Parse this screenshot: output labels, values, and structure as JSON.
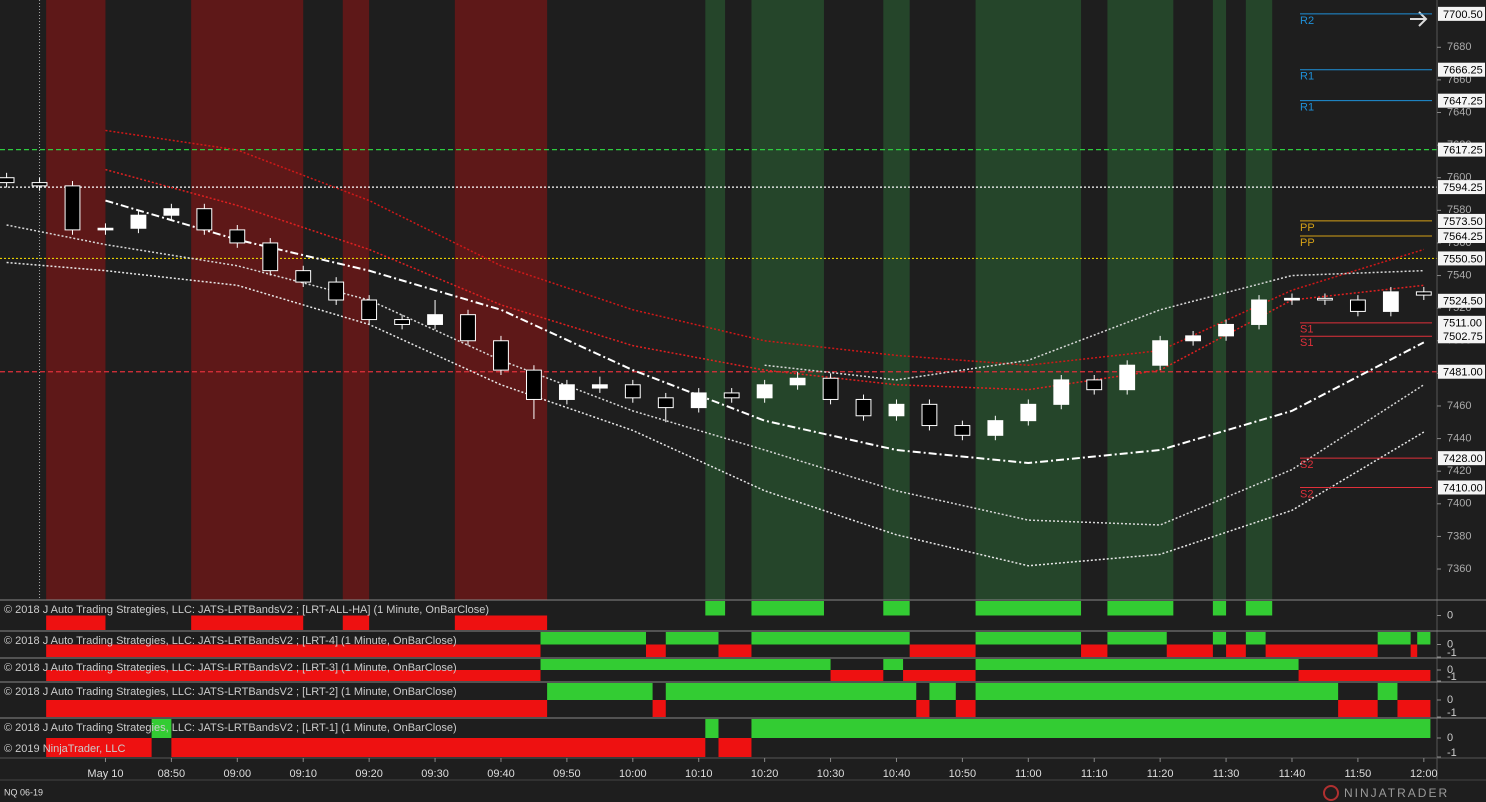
{
  "chart_data": {
    "type": "candlestick",
    "xlim": [
      "08:24",
      "12:02"
    ],
    "ylim": [
      7341,
      7709
    ],
    "yticks": [
      7360,
      7380,
      7400,
      7420,
      7440,
      7460,
      7480,
      7500,
      7520,
      7540,
      7560,
      7580,
      7600,
      7620,
      7640,
      7660,
      7680
    ],
    "xticks": [
      {
        "value": "08:40",
        "label": "May 10"
      },
      "08:50",
      "09:00",
      "09:10",
      "09:20",
      "09:30",
      "09:40",
      "09:50",
      "10:00",
      "10:10",
      "10:20",
      "10:30",
      "10:40",
      "10:50",
      "11:00",
      "11:10",
      "11:20",
      "11:30",
      "11:40",
      "11:50",
      "12:00"
    ],
    "session_start": "08:30",
    "up_color": "#ffffff",
    "down_color": "#000000",
    "wick_color": "#ffffff",
    "x": [
      "08:25",
      "08:30",
      "08:35",
      "08:40",
      "08:45",
      "08:50",
      "08:55",
      "09:00",
      "09:05",
      "09:10",
      "09:15",
      "09:20",
      "09:25",
      "09:30",
      "09:35",
      "09:40",
      "09:45",
      "09:50",
      "09:55",
      "10:00",
      "10:05",
      "10:10",
      "10:15",
      "10:20",
      "10:25",
      "10:30",
      "10:35",
      "10:40",
      "10:45",
      "10:50",
      "10:55",
      "11:00",
      "11:05",
      "11:10",
      "11:15",
      "11:20",
      "11:25",
      "11:30",
      "11:35",
      "11:40",
      "11:45",
      "11:50",
      "11:55",
      "12:00"
    ],
    "open": [
      7600,
      7597,
      7595,
      7568,
      7569,
      7577,
      7581,
      7568,
      7560,
      7543,
      7536,
      7525,
      7513,
      7510,
      7516,
      7500,
      7482,
      7464,
      7471,
      7473,
      7465,
      7459,
      7468,
      7465,
      7473,
      7477,
      7464,
      7454,
      7461,
      7448,
      7442,
      7451,
      7461,
      7476,
      7470,
      7485,
      7500,
      7503,
      7510,
      7525,
      7526,
      7525,
      7518,
      7530
    ],
    "high": [
      7603,
      7600,
      7598,
      7572,
      7580,
      7584,
      7584,
      7571,
      7563,
      7546,
      7539,
      7528,
      7516,
      7525,
      7519,
      7503,
      7485,
      7476,
      7478,
      7476,
      7468,
      7471,
      7471,
      7476,
      7481,
      7480,
      7467,
      7464,
      7464,
      7451,
      7454,
      7464,
      7479,
      7479,
      7488,
      7503,
      7506,
      7513,
      7528,
      7529,
      7529,
      7528,
      7533,
      7533
    ],
    "low": [
      7594,
      7592,
      7565,
      7565,
      7566,
      7574,
      7565,
      7557,
      7540,
      7533,
      7522,
      7510,
      7507,
      7507,
      7497,
      7479,
      7452,
      7461,
      7468,
      7462,
      7450,
      7456,
      7462,
      7462,
      7470,
      7461,
      7451,
      7451,
      7445,
      7439,
      7439,
      7448,
      7458,
      7467,
      7467,
      7482,
      7497,
      7500,
      7507,
      7522,
      7522,
      7515,
      7515,
      7525
    ],
    "close": [
      7597,
      7595,
      7568,
      7569,
      7577,
      7581,
      7568,
      7560,
      7543,
      7536,
      7525,
      7513,
      7510,
      7516,
      7500,
      7482,
      7464,
      7473,
      7473,
      7465,
      7459,
      7468,
      7465,
      7473,
      7477,
      7464,
      7454,
      7461,
      7448,
      7442,
      7451,
      7461,
      7476,
      7470,
      7485,
      7500,
      7503,
      7510,
      7525,
      7526,
      7525,
      7518,
      7530,
      7528
    ],
    "bands": {
      "x": [
        "08:25",
        "08:40",
        "09:00",
        "09:20",
        "09:40",
        "10:00",
        "10:20",
        "10:40",
        "11:00",
        "11:20",
        "11:40",
        "12:00"
      ],
      "series": [
        {
          "color": "#d01818",
          "style": "dotted",
          "values": [
            null,
            7629,
            7617,
            7586,
            7546,
            7519,
            7500,
            7491,
            7485,
            7494,
            7531,
            7556
          ]
        },
        {
          "color": "#e02020",
          "style": "dotted",
          "values": [
            null,
            7605,
            7583,
            7556,
            7522,
            7497,
            7482,
            7473,
            7470,
            7482,
            7525,
            7534
          ]
        },
        {
          "color": "#ffffff",
          "style": "dashdot",
          "values": [
            null,
            7586,
            7562,
            7543,
            7519,
            7482,
            7451,
            7433,
            7425,
            7433,
            7457,
            7499
          ]
        },
        {
          "color": "#d8d8d8",
          "style": "dotted",
          "values": [
            null,
            null,
            null,
            null,
            null,
            null,
            7485,
            7476,
            7488,
            7519,
            7540,
            7543
          ]
        },
        {
          "color": "#d8d8d8",
          "style": "dotted",
          "values": [
            7571,
            7559,
            7546,
            7525,
            7488,
            7457,
            7433,
            7408,
            7390,
            7387,
            7421,
            7473
          ]
        },
        {
          "color": "#e8e8e8",
          "style": "dotted",
          "values": [
            7548,
            7543,
            7534,
            7510,
            7473,
            7445,
            7408,
            7381,
            7362,
            7369,
            7396,
            7444
          ]
        }
      ]
    },
    "regions": [
      {
        "start": "08:31",
        "end": "08:40",
        "color": "#5e1818"
      },
      {
        "start": "08:53",
        "end": "09:10",
        "color": "#5e1818"
      },
      {
        "start": "09:16",
        "end": "09:20",
        "color": "#5e1818"
      },
      {
        "start": "09:33",
        "end": "09:47",
        "color": "#5e1818"
      },
      {
        "start": "10:11",
        "end": "10:14",
        "color": "#25452a"
      },
      {
        "start": "10:18",
        "end": "10:29",
        "color": "#25452a"
      },
      {
        "start": "10:38",
        "end": "10:42",
        "color": "#25452a"
      },
      {
        "start": "10:52",
        "end": "11:08",
        "color": "#25452a"
      },
      {
        "start": "11:12",
        "end": "11:22",
        "color": "#25452a"
      },
      {
        "start": "11:28",
        "end": "11:30",
        "color": "#25452a"
      },
      {
        "start": "11:33",
        "end": "11:37",
        "color": "#25452a"
      }
    ],
    "levels": [
      {
        "value": 7700.5,
        "label": "7700.50",
        "name": "R2",
        "color": "#1e90d8",
        "style": "pivot"
      },
      {
        "value": 7666.25,
        "label": "7666.25",
        "name": "R1",
        "color": "#1e90d8",
        "style": "pivot"
      },
      {
        "value": 7647.25,
        "label": "7647.25",
        "name": "R1",
        "color": "#1e90d8",
        "style": "pivot"
      },
      {
        "value": 7617.25,
        "label": "7617.25",
        "color": "#2ecc40",
        "style": "dashed"
      },
      {
        "value": 7594.25,
        "label": "7594.25",
        "color": "#ffffff",
        "style": "dotted"
      },
      {
        "value": 7573.5,
        "label": "7573.50",
        "name": "PP",
        "color": "#d4a017",
        "style": "pivot"
      },
      {
        "value": 7564.25,
        "label": "7564.25",
        "name": "PP",
        "color": "#d4a017",
        "style": "pivot"
      },
      {
        "value": 7550.5,
        "label": "7550.50",
        "color": "#e8d000",
        "style": "dotted"
      },
      {
        "value": 7524.5,
        "label": "7524.50",
        "color": "#ffffff",
        "style": "price"
      },
      {
        "value": 7511,
        "label": "7511.00",
        "name": "S1",
        "color": "#e0303a",
        "style": "pivot"
      },
      {
        "value": 7502.75,
        "label": "7502.75",
        "name": "S1",
        "color": "#e0303a",
        "style": "pivot"
      },
      {
        "value": 7481,
        "label": "7481.00",
        "color": "#e0303a",
        "style": "dashed"
      },
      {
        "value": 7428,
        "label": "7428.00",
        "name": "S2",
        "color": "#e0303a",
        "style": "pivot"
      },
      {
        "value": 7410,
        "label": "7410.00",
        "name": "S2",
        "color": "#e0303a",
        "style": "pivot"
      }
    ],
    "panels": [
      {
        "title": "© 2018 J Auto Trading Strategies, LLC: JATS-LRTBandsV2 ; [LRT-ALL-HA] (1 Minute, OnBarClose)",
        "yticks": [
          0
        ],
        "runs": [
          {
            "start": "08:31",
            "end": "08:40",
            "value": -1
          },
          {
            "start": "08:53",
            "end": "09:10",
            "value": -1
          },
          {
            "start": "09:16",
            "end": "09:20",
            "value": -1
          },
          {
            "start": "09:33",
            "end": "09:47",
            "value": -1
          },
          {
            "start": "10:11",
            "end": "10:14",
            "value": 1
          },
          {
            "start": "10:18",
            "end": "10:29",
            "value": 1
          },
          {
            "start": "10:38",
            "end": "10:42",
            "value": 1
          },
          {
            "start": "10:52",
            "end": "11:08",
            "value": 1
          },
          {
            "start": "11:12",
            "end": "11:22",
            "value": 1
          },
          {
            "start": "11:28",
            "end": "11:30",
            "value": 1
          },
          {
            "start": "11:33",
            "end": "11:37",
            "value": 1
          }
        ]
      },
      {
        "title": "© 2018 J Auto Trading Strategies, LLC: JATS-LRTBandsV2 ; [LRT-4] (1 Minute, OnBarClose)",
        "yticks": [
          0,
          -1
        ],
        "runs": [
          {
            "start": "08:31",
            "end": "09:46",
            "value": -1
          },
          {
            "start": "09:46",
            "end": "10:02",
            "value": 1
          },
          {
            "start": "10:02",
            "end": "10:05",
            "value": -1
          },
          {
            "start": "10:05",
            "end": "10:13",
            "value": 1
          },
          {
            "start": "10:13",
            "end": "10:18",
            "value": -1
          },
          {
            "start": "10:18",
            "end": "10:42",
            "value": 1
          },
          {
            "start": "10:42",
            "end": "10:52",
            "value": -1
          },
          {
            "start": "10:52",
            "end": "11:08",
            "value": 1
          },
          {
            "start": "11:08",
            "end": "11:12",
            "value": -1
          },
          {
            "start": "11:12",
            "end": "11:21",
            "value": 1
          },
          {
            "start": "11:21",
            "end": "11:28",
            "value": -1
          },
          {
            "start": "11:28",
            "end": "11:30",
            "value": 1
          },
          {
            "start": "11:30",
            "end": "11:33",
            "value": -1
          },
          {
            "start": "11:33",
            "end": "11:36",
            "value": 1
          },
          {
            "start": "11:36",
            "end": "11:53",
            "value": -1
          },
          {
            "start": "11:53",
            "end": "11:58",
            "value": 1
          },
          {
            "start": "11:58",
            "end": "11:59",
            "value": -1
          },
          {
            "start": "11:59",
            "end": "12:01",
            "value": 1
          }
        ]
      },
      {
        "title": "© 2018 J Auto Trading Strategies, LLC: JATS-LRTBandsV2 ; [LRT-3] (1 Minute, OnBarClose)",
        "yticks": [
          0,
          -1
        ],
        "runs": [
          {
            "start": "08:31",
            "end": "09:46",
            "value": -1
          },
          {
            "start": "09:46",
            "end": "10:30",
            "value": 1
          },
          {
            "start": "10:30",
            "end": "10:38",
            "value": -1
          },
          {
            "start": "10:38",
            "end": "10:41",
            "value": 1
          },
          {
            "start": "10:41",
            "end": "10:52",
            "value": -1
          },
          {
            "start": "10:52",
            "end": "11:41",
            "value": 1
          },
          {
            "start": "11:41",
            "end": "12:01",
            "value": -1
          }
        ]
      },
      {
        "title": "© 2018 J Auto Trading Strategies, LLC: JATS-LRTBandsV2 ; [LRT-2] (1 Minute, OnBarClose)",
        "yticks": [
          0,
          -1
        ],
        "runs": [
          {
            "start": "08:31",
            "end": "09:47",
            "value": -1
          },
          {
            "start": "09:47",
            "end": "10:03",
            "value": 1
          },
          {
            "start": "10:03",
            "end": "10:05",
            "value": -1
          },
          {
            "start": "10:05",
            "end": "10:43",
            "value": 1
          },
          {
            "start": "10:43",
            "end": "10:45",
            "value": -1
          },
          {
            "start": "10:45",
            "end": "10:49",
            "value": 1
          },
          {
            "start": "10:49",
            "end": "10:52",
            "value": -1
          },
          {
            "start": "10:52",
            "end": "11:47",
            "value": 1
          },
          {
            "start": "11:47",
            "end": "11:53",
            "value": -1
          },
          {
            "start": "11:53",
            "end": "11:56",
            "value": 1
          },
          {
            "start": "11:56",
            "end": "12:01",
            "value": -1
          }
        ]
      },
      {
        "title": "© 2018 J Auto Trading Strategies, LLC: JATS-LRTBandsV2 ; [LRT-1] (1 Minute, OnBarClose)",
        "yticks": [
          0,
          -1
        ],
        "runs": [
          {
            "start": "08:31",
            "end": "08:47",
            "value": -1
          },
          {
            "start": "08:47",
            "end": "08:50",
            "value": 1
          },
          {
            "start": "08:50",
            "end": "10:11",
            "value": -1
          },
          {
            "start": "10:11",
            "end": "10:13",
            "value": 1
          },
          {
            "start": "10:13",
            "end": "10:18",
            "value": -1
          },
          {
            "start": "10:18",
            "end": "12:01",
            "value": 1
          }
        ]
      }
    ],
    "copyright": "© 2019 NinjaTrader, LLC",
    "instrument": "NQ 06-19",
    "logo": "NINJATRADER"
  }
}
